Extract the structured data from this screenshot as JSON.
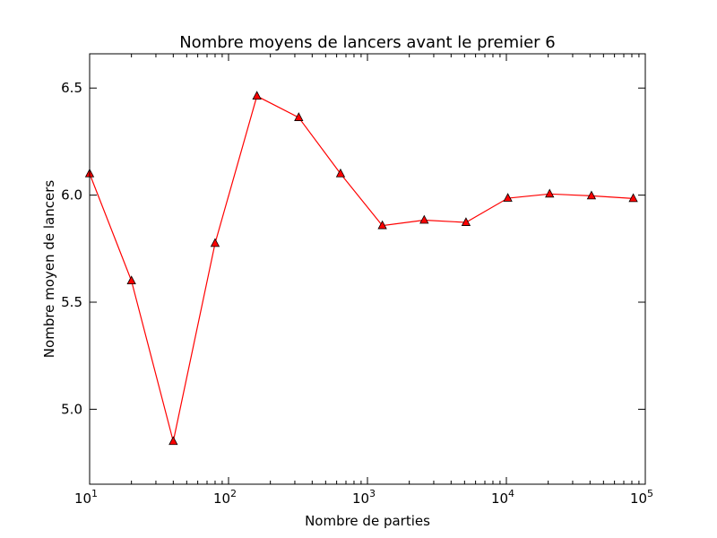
{
  "chart_data": {
    "type": "line",
    "title": "Nombre moyens de lancers avant le premier 6",
    "xlabel": "Nombre de parties",
    "ylabel": "Nombre moyen de lancers",
    "x_scale": "log",
    "xlim": [
      10,
      100000
    ],
    "ylim": [
      4.65,
      6.66
    ],
    "x_ticks": [
      {
        "value": 10,
        "base": "10",
        "exp": "1"
      },
      {
        "value": 100,
        "base": "10",
        "exp": "2"
      },
      {
        "value": 1000,
        "base": "10",
        "exp": "3"
      },
      {
        "value": 10000,
        "base": "10",
        "exp": "4"
      },
      {
        "value": 100000,
        "base": "10",
        "exp": "5"
      }
    ],
    "y_ticks": [
      {
        "value": 5.0,
        "label": "5.0"
      },
      {
        "value": 5.5,
        "label": "5.5"
      },
      {
        "value": 6.0,
        "label": "6.0"
      },
      {
        "value": 6.5,
        "label": "6.5"
      }
    ],
    "grid": false,
    "marker": "triangle",
    "series": [
      {
        "color": "#ff0000",
        "marker_face": "#ff0000",
        "marker_edge": "#000000",
        "x": [
          10,
          20,
          40,
          80,
          160,
          320,
          640,
          1280,
          2560,
          5120,
          10240,
          20480,
          40960,
          81920
        ],
        "values": [
          6.1,
          5.6,
          4.85,
          5.775,
          6.4625,
          6.3625,
          6.1,
          5.8578,
          5.8832,
          5.8725,
          5.9857,
          6.0054,
          5.9967,
          5.9843
        ]
      }
    ]
  }
}
